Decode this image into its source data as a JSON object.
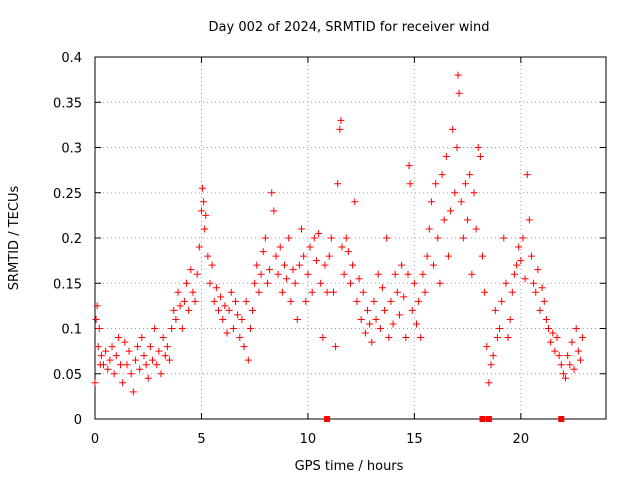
{
  "chart_data": {
    "type": "scatter",
    "title": "Day 002 of 2024, SRMTID for receiver wind",
    "xlabel": "GPS time / hours",
    "ylabel": "SRMTID / TECUs",
    "xlim": [
      0,
      24
    ],
    "ylim": [
      0,
      0.4
    ],
    "x_ticks": [
      0,
      5,
      10,
      15,
      20
    ],
    "x_tick_labels": [
      "0",
      "5",
      "10",
      "15",
      "20"
    ],
    "y_ticks": [
      0,
      0.05,
      0.1,
      0.15,
      0.2,
      0.25,
      0.3,
      0.35,
      0.4
    ],
    "y_tick_labels": [
      "0",
      "0.05",
      "0.1",
      "0.15",
      "0.2",
      "0.25",
      "0.3",
      "0.35",
      "0.4"
    ],
    "grid": true,
    "marker": "plus",
    "color": "#ff0000",
    "series": [
      {
        "name": "SRMTID",
        "points": [
          [
            0.0,
            0.04
          ],
          [
            0.05,
            0.11
          ],
          [
            0.1,
            0.125
          ],
          [
            0.15,
            0.08
          ],
          [
            0.2,
            0.1
          ],
          [
            0.25,
            0.06
          ],
          [
            0.3,
            0.07
          ],
          [
            0.4,
            0.06
          ],
          [
            0.5,
            0.075
          ],
          [
            0.6,
            0.055
          ],
          [
            0.7,
            0.065
          ],
          [
            0.8,
            0.08
          ],
          [
            0.9,
            0.05
          ],
          [
            1.0,
            0.07
          ],
          [
            1.1,
            0.09
          ],
          [
            1.2,
            0.06
          ],
          [
            1.3,
            0.04
          ],
          [
            1.4,
            0.085
          ],
          [
            1.5,
            0.06
          ],
          [
            1.6,
            0.075
          ],
          [
            1.7,
            0.05
          ],
          [
            1.8,
            0.03
          ],
          [
            1.9,
            0.065
          ],
          [
            2.0,
            0.08
          ],
          [
            2.1,
            0.055
          ],
          [
            2.2,
            0.09
          ],
          [
            2.3,
            0.07
          ],
          [
            2.4,
            0.06
          ],
          [
            2.5,
            0.045
          ],
          [
            2.6,
            0.08
          ],
          [
            2.7,
            0.065
          ],
          [
            2.8,
            0.1
          ],
          [
            2.9,
            0.06
          ],
          [
            3.0,
            0.075
          ],
          [
            3.1,
            0.05
          ],
          [
            3.2,
            0.09
          ],
          [
            3.3,
            0.07
          ],
          [
            3.4,
            0.08
          ],
          [
            3.5,
            0.065
          ],
          [
            3.6,
            0.1
          ],
          [
            3.7,
            0.12
          ],
          [
            3.8,
            0.11
          ],
          [
            3.9,
            0.14
          ],
          [
            4.0,
            0.125
          ],
          [
            4.1,
            0.1
          ],
          [
            4.2,
            0.13
          ],
          [
            4.3,
            0.15
          ],
          [
            4.4,
            0.12
          ],
          [
            4.5,
            0.165
          ],
          [
            4.6,
            0.14
          ],
          [
            4.7,
            0.13
          ],
          [
            4.8,
            0.16
          ],
          [
            4.9,
            0.19
          ],
          [
            5.0,
            0.23
          ],
          [
            5.05,
            0.255
          ],
          [
            5.1,
            0.24
          ],
          [
            5.15,
            0.21
          ],
          [
            5.2,
            0.225
          ],
          [
            5.3,
            0.18
          ],
          [
            5.4,
            0.15
          ],
          [
            5.5,
            0.17
          ],
          [
            5.6,
            0.13
          ],
          [
            5.7,
            0.145
          ],
          [
            5.8,
            0.12
          ],
          [
            5.9,
            0.135
          ],
          [
            6.0,
            0.11
          ],
          [
            6.1,
            0.125
          ],
          [
            6.2,
            0.095
          ],
          [
            6.3,
            0.12
          ],
          [
            6.4,
            0.14
          ],
          [
            6.5,
            0.1
          ],
          [
            6.6,
            0.13
          ],
          [
            6.7,
            0.115
          ],
          [
            6.8,
            0.09
          ],
          [
            6.9,
            0.11
          ],
          [
            7.0,
            0.08
          ],
          [
            7.1,
            0.13
          ],
          [
            7.2,
            0.065
          ],
          [
            7.3,
            0.1
          ],
          [
            7.4,
            0.12
          ],
          [
            7.5,
            0.15
          ],
          [
            7.6,
            0.17
          ],
          [
            7.7,
            0.14
          ],
          [
            7.8,
            0.16
          ],
          [
            7.9,
            0.185
          ],
          [
            8.0,
            0.2
          ],
          [
            8.1,
            0.15
          ],
          [
            8.2,
            0.165
          ],
          [
            8.3,
            0.25
          ],
          [
            8.4,
            0.23
          ],
          [
            8.5,
            0.18
          ],
          [
            8.6,
            0.16
          ],
          [
            8.7,
            0.19
          ],
          [
            8.8,
            0.14
          ],
          [
            8.9,
            0.17
          ],
          [
            9.0,
            0.155
          ],
          [
            9.1,
            0.2
          ],
          [
            9.2,
            0.13
          ],
          [
            9.3,
            0.165
          ],
          [
            9.4,
            0.15
          ],
          [
            9.5,
            0.11
          ],
          [
            9.6,
            0.17
          ],
          [
            9.7,
            0.21
          ],
          [
            9.8,
            0.18
          ],
          [
            9.9,
            0.13
          ],
          [
            10.0,
            0.16
          ],
          [
            10.1,
            0.19
          ],
          [
            10.2,
            0.14
          ],
          [
            10.3,
            0.2
          ],
          [
            10.4,
            0.175
          ],
          [
            10.5,
            0.205
          ],
          [
            10.6,
            0.15
          ],
          [
            10.7,
            0.09
          ],
          [
            10.8,
            0.17
          ],
          [
            10.9,
            0.14
          ],
          [
            11.0,
            0.18
          ],
          [
            11.1,
            0.2
          ],
          [
            11.2,
            0.14
          ],
          [
            11.3,
            0.08
          ],
          [
            11.4,
            0.26
          ],
          [
            11.5,
            0.32
          ],
          [
            11.55,
            0.33
          ],
          [
            11.6,
            0.19
          ],
          [
            11.7,
            0.16
          ],
          [
            11.8,
            0.2
          ],
          [
            11.9,
            0.185
          ],
          [
            12.0,
            0.15
          ],
          [
            12.1,
            0.17
          ],
          [
            12.2,
            0.24
          ],
          [
            12.3,
            0.13
          ],
          [
            12.4,
            0.155
          ],
          [
            12.5,
            0.11
          ],
          [
            12.6,
            0.14
          ],
          [
            12.7,
            0.095
          ],
          [
            12.8,
            0.12
          ],
          [
            12.9,
            0.105
          ],
          [
            13.0,
            0.085
          ],
          [
            13.1,
            0.13
          ],
          [
            13.2,
            0.11
          ],
          [
            13.3,
            0.16
          ],
          [
            13.4,
            0.1
          ],
          [
            13.5,
            0.145
          ],
          [
            13.6,
            0.12
          ],
          [
            13.7,
            0.2
          ],
          [
            13.8,
            0.09
          ],
          [
            13.9,
            0.13
          ],
          [
            14.0,
            0.105
          ],
          [
            14.1,
            0.16
          ],
          [
            14.2,
            0.14
          ],
          [
            14.3,
            0.115
          ],
          [
            14.4,
            0.17
          ],
          [
            14.5,
            0.135
          ],
          [
            14.6,
            0.09
          ],
          [
            14.7,
            0.16
          ],
          [
            14.75,
            0.28
          ],
          [
            14.8,
            0.26
          ],
          [
            14.9,
            0.12
          ],
          [
            15.0,
            0.15
          ],
          [
            15.1,
            0.105
          ],
          [
            15.2,
            0.13
          ],
          [
            15.3,
            0.09
          ],
          [
            15.4,
            0.16
          ],
          [
            15.5,
            0.14
          ],
          [
            15.6,
            0.18
          ],
          [
            15.7,
            0.21
          ],
          [
            15.8,
            0.24
          ],
          [
            15.9,
            0.17
          ],
          [
            16.0,
            0.26
          ],
          [
            16.1,
            0.2
          ],
          [
            16.2,
            0.15
          ],
          [
            16.3,
            0.27
          ],
          [
            16.4,
            0.22
          ],
          [
            16.5,
            0.29
          ],
          [
            16.6,
            0.18
          ],
          [
            16.7,
            0.23
          ],
          [
            16.8,
            0.32
          ],
          [
            16.9,
            0.25
          ],
          [
            17.0,
            0.3
          ],
          [
            17.05,
            0.38
          ],
          [
            17.1,
            0.36
          ],
          [
            17.2,
            0.24
          ],
          [
            17.3,
            0.2
          ],
          [
            17.4,
            0.26
          ],
          [
            17.5,
            0.22
          ],
          [
            17.6,
            0.27
          ],
          [
            17.7,
            0.16
          ],
          [
            17.8,
            0.25
          ],
          [
            17.9,
            0.21
          ],
          [
            18.0,
            0.3
          ],
          [
            18.1,
            0.29
          ],
          [
            18.2,
            0.18
          ],
          [
            18.3,
            0.14
          ],
          [
            18.4,
            0.08
          ],
          [
            18.5,
            0.04
          ],
          [
            18.6,
            0.06
          ],
          [
            18.7,
            0.07
          ],
          [
            18.8,
            0.12
          ],
          [
            18.9,
            0.09
          ],
          [
            19.0,
            0.1
          ],
          [
            19.1,
            0.13
          ],
          [
            19.2,
            0.2
          ],
          [
            19.3,
            0.15
          ],
          [
            19.4,
            0.09
          ],
          [
            19.5,
            0.11
          ],
          [
            19.6,
            0.14
          ],
          [
            19.7,
            0.16
          ],
          [
            19.8,
            0.17
          ],
          [
            19.9,
            0.19
          ],
          [
            20.0,
            0.175
          ],
          [
            20.1,
            0.2
          ],
          [
            20.2,
            0.155
          ],
          [
            20.3,
            0.27
          ],
          [
            20.4,
            0.22
          ],
          [
            20.5,
            0.18
          ],
          [
            20.6,
            0.15
          ],
          [
            20.7,
            0.14
          ],
          [
            20.8,
            0.165
          ],
          [
            20.9,
            0.12
          ],
          [
            21.0,
            0.145
          ],
          [
            21.1,
            0.13
          ],
          [
            21.2,
            0.11
          ],
          [
            21.3,
            0.1
          ],
          [
            21.4,
            0.085
          ],
          [
            21.5,
            0.095
          ],
          [
            21.6,
            0.075
          ],
          [
            21.7,
            0.09
          ],
          [
            21.8,
            0.07
          ],
          [
            21.9,
            0.06
          ],
          [
            22.0,
            0.05
          ],
          [
            22.1,
            0.045
          ],
          [
            22.2,
            0.07
          ],
          [
            22.3,
            0.06
          ],
          [
            22.4,
            0.085
          ],
          [
            22.5,
            0.055
          ],
          [
            22.6,
            0.1
          ],
          [
            22.7,
            0.075
          ],
          [
            22.8,
            0.065
          ],
          [
            22.9,
            0.09
          ]
        ]
      }
    ],
    "baseline_markers_x": [
      10.9,
      18.2,
      18.5,
      21.9
    ]
  }
}
